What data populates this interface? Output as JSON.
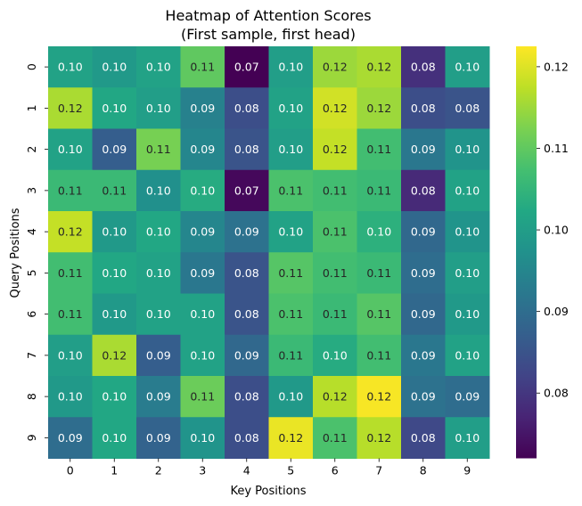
{
  "chart_data": {
    "type": "heatmap",
    "title": "Heatmap of Attention Scores",
    "subtitle": "(First sample, first head)",
    "xlabel": "Key Positions",
    "ylabel": "Query Positions",
    "x_ticks": [
      "0",
      "1",
      "2",
      "3",
      "4",
      "5",
      "6",
      "7",
      "8",
      "9"
    ],
    "y_ticks": [
      "0",
      "1",
      "2",
      "3",
      "4",
      "5",
      "6",
      "7",
      "8",
      "9"
    ],
    "values": [
      [
        0.101,
        0.099,
        0.101,
        0.11,
        0.072,
        0.1,
        0.115,
        0.116,
        0.079,
        0.1
      ],
      [
        0.116,
        0.102,
        0.1,
        0.094,
        0.084,
        0.101,
        0.119,
        0.115,
        0.084,
        0.085
      ],
      [
        0.101,
        0.087,
        0.112,
        0.095,
        0.085,
        0.1,
        0.118,
        0.107,
        0.092,
        0.098
      ],
      [
        0.106,
        0.106,
        0.097,
        0.103,
        0.073,
        0.108,
        0.107,
        0.106,
        0.078,
        0.101
      ],
      [
        0.118,
        0.099,
        0.102,
        0.095,
        0.091,
        0.101,
        0.108,
        0.104,
        0.089,
        0.098
      ],
      [
        0.107,
        0.102,
        0.101,
        0.092,
        0.085,
        0.109,
        0.107,
        0.106,
        0.09,
        0.1
      ],
      [
        0.107,
        0.099,
        0.101,
        0.101,
        0.085,
        0.108,
        0.106,
        0.109,
        0.089,
        0.099
      ],
      [
        0.1,
        0.116,
        0.087,
        0.101,
        0.089,
        0.106,
        0.103,
        0.107,
        0.092,
        0.101
      ],
      [
        0.099,
        0.102,
        0.093,
        0.111,
        0.084,
        0.099,
        0.117,
        0.122,
        0.091,
        0.09
      ],
      [
        0.09,
        0.102,
        0.088,
        0.098,
        0.084,
        0.121,
        0.108,
        0.117,
        0.083,
        0.1
      ]
    ],
    "labels": [
      [
        "0.10",
        "0.10",
        "0.10",
        "0.11",
        "0.07",
        "0.10",
        "0.12",
        "0.12",
        "0.08",
        "0.10"
      ],
      [
        "0.12",
        "0.10",
        "0.10",
        "0.09",
        "0.08",
        "0.10",
        "0.12",
        "0.12",
        "0.08",
        "0.08"
      ],
      [
        "0.10",
        "0.09",
        "0.11",
        "0.09",
        "0.08",
        "0.10",
        "0.12",
        "0.11",
        "0.09",
        "0.10"
      ],
      [
        "0.11",
        "0.11",
        "0.10",
        "0.10",
        "0.07",
        "0.11",
        "0.11",
        "0.11",
        "0.08",
        "0.10"
      ],
      [
        "0.12",
        "0.10",
        "0.10",
        "0.09",
        "0.09",
        "0.10",
        "0.11",
        "0.10",
        "0.09",
        "0.10"
      ],
      [
        "0.11",
        "0.10",
        "0.10",
        "0.09",
        "0.08",
        "0.11",
        "0.11",
        "0.11",
        "0.09",
        "0.10"
      ],
      [
        "0.11",
        "0.10",
        "0.10",
        "0.10",
        "0.08",
        "0.11",
        "0.11",
        "0.11",
        "0.09",
        "0.10"
      ],
      [
        "0.10",
        "0.12",
        "0.09",
        "0.10",
        "0.09",
        "0.11",
        "0.10",
        "0.11",
        "0.09",
        "0.10"
      ],
      [
        "0.10",
        "0.10",
        "0.09",
        "0.11",
        "0.08",
        "0.10",
        "0.12",
        "0.12",
        "0.09",
        "0.09"
      ],
      [
        "0.09",
        "0.10",
        "0.09",
        "0.10",
        "0.08",
        "0.12",
        "0.11",
        "0.12",
        "0.08",
        "0.10"
      ]
    ],
    "colormap": "viridis",
    "vmin": 0.072,
    "vmax": 0.1225,
    "colorbar_ticks": [
      0.08,
      0.09,
      0.1,
      0.11,
      0.12
    ],
    "colorbar_tick_labels": [
      "0.08",
      "0.09",
      "0.10",
      "0.11",
      "0.12"
    ]
  }
}
